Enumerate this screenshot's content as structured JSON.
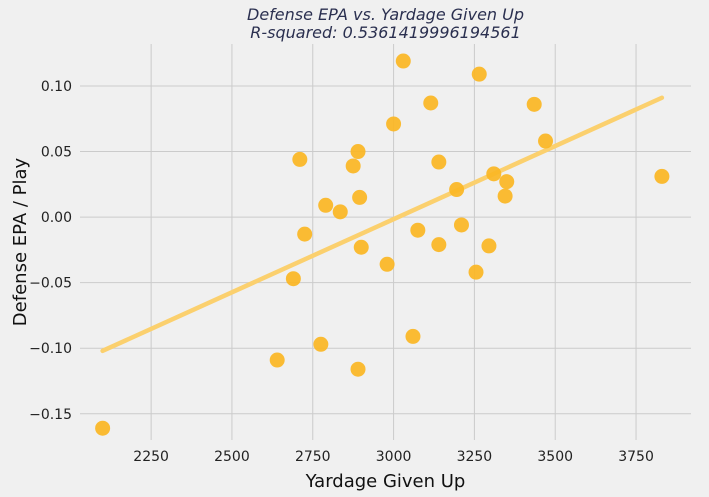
{
  "chart_data": {
    "type": "scatter",
    "title": "Defense EPA vs. Yardage Given Up",
    "subtitle": "R-squared: 0.5361419996194561",
    "xlabel": "Yardage Given Up",
    "ylabel": "Defense EPA / Play",
    "xlim": [
      2030,
      3920
    ],
    "ylim": [
      -0.17,
      0.132
    ],
    "xticks": [
      2250,
      2500,
      2750,
      3000,
      3250,
      3500,
      3750
    ],
    "yticks": [
      -0.15,
      -0.1,
      -0.05,
      0.0,
      0.05,
      0.1
    ],
    "xtick_labels": [
      "2250",
      "2500",
      "2750",
      "3000",
      "3250",
      "3500",
      "3750"
    ],
    "ytick_labels": [
      "−0.15",
      "−0.10",
      "−0.05",
      "0.00",
      "0.05",
      "0.10"
    ],
    "grid": true,
    "points_color": "#fbb623",
    "line_color": "#fbd06e",
    "background_color": "#f0f0f0",
    "grid_color": "#cbcbcb",
    "points": [
      {
        "x": 2100,
        "y": -0.161
      },
      {
        "x": 2640,
        "y": -0.109
      },
      {
        "x": 2690,
        "y": -0.047
      },
      {
        "x": 2710,
        "y": 0.044
      },
      {
        "x": 2725,
        "y": -0.013
      },
      {
        "x": 2775,
        "y": -0.097
      },
      {
        "x": 2790,
        "y": 0.009
      },
      {
        "x": 2835,
        "y": 0.004
      },
      {
        "x": 2875,
        "y": 0.039
      },
      {
        "x": 2890,
        "y": 0.05
      },
      {
        "x": 2895,
        "y": 0.015
      },
      {
        "x": 2900,
        "y": -0.023
      },
      {
        "x": 2890,
        "y": -0.116
      },
      {
        "x": 2980,
        "y": -0.036
      },
      {
        "x": 3000,
        "y": 0.071
      },
      {
        "x": 3030,
        "y": 0.119
      },
      {
        "x": 3060,
        "y": -0.091
      },
      {
        "x": 3075,
        "y": -0.01
      },
      {
        "x": 3115,
        "y": 0.087
      },
      {
        "x": 3140,
        "y": 0.042
      },
      {
        "x": 3140,
        "y": -0.021
      },
      {
        "x": 3195,
        "y": 0.021
      },
      {
        "x": 3210,
        "y": -0.006
      },
      {
        "x": 3255,
        "y": -0.042
      },
      {
        "x": 3265,
        "y": 0.109
      },
      {
        "x": 3295,
        "y": -0.022
      },
      {
        "x": 3310,
        "y": 0.033
      },
      {
        "x": 3345,
        "y": 0.016
      },
      {
        "x": 3350,
        "y": 0.027
      },
      {
        "x": 3435,
        "y": 0.086
      },
      {
        "x": 3470,
        "y": 0.058
      },
      {
        "x": 3830,
        "y": 0.031
      }
    ],
    "fit_line": {
      "x": [
        2100,
        3830
      ],
      "y": [
        -0.102,
        0.091
      ]
    }
  }
}
